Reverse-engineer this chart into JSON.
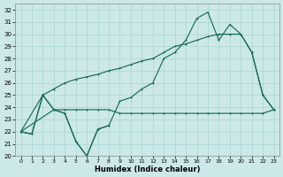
{
  "xlabel": "Humidex (Indice chaleur)",
  "xlim": [
    -0.5,
    23.5
  ],
  "ylim": [
    20,
    32.5
  ],
  "xticks": [
    0,
    1,
    2,
    3,
    4,
    5,
    6,
    7,
    8,
    9,
    10,
    11,
    12,
    13,
    14,
    15,
    16,
    17,
    18,
    19,
    20,
    21,
    22,
    23
  ],
  "yticks": [
    20,
    21,
    22,
    23,
    24,
    25,
    26,
    27,
    28,
    29,
    30,
    31,
    32
  ],
  "bg_color": "#cce8e8",
  "grid_color": "#aad4d4",
  "line_color": "#1a6b5a",
  "line_width": 0.85,
  "marker_size": 2.0,
  "series": [
    {
      "x": [
        0,
        1,
        2,
        3,
        4,
        5,
        6,
        7,
        8
      ],
      "y": [
        22.0,
        21.8,
        25.0,
        23.8,
        23.5,
        21.2,
        20.0,
        22.2,
        22.5
      ]
    },
    {
      "x": [
        0,
        3,
        4,
        5,
        6,
        7,
        8,
        9,
        10,
        11,
        12,
        13,
        14,
        15,
        16,
        17,
        18,
        19,
        20,
        21,
        22,
        23
      ],
      "y": [
        22.0,
        23.8,
        23.8,
        23.8,
        23.8,
        23.8,
        23.8,
        23.5,
        23.5,
        23.5,
        23.5,
        23.5,
        23.5,
        23.5,
        23.5,
        23.5,
        23.5,
        23.5,
        23.5,
        23.5,
        23.5,
        23.8
      ]
    },
    {
      "x": [
        0,
        2,
        3,
        4,
        5,
        6,
        7,
        8,
        9,
        10,
        11,
        12,
        13,
        14,
        15,
        16,
        17,
        18,
        19,
        20,
        21,
        22,
        23
      ],
      "y": [
        22.0,
        25.0,
        25.5,
        26.0,
        26.3,
        26.5,
        26.7,
        27.0,
        27.2,
        27.5,
        27.8,
        28.0,
        28.5,
        29.0,
        29.2,
        29.5,
        29.8,
        30.0,
        30.0,
        30.0,
        28.5,
        25.0,
        23.8
      ]
    },
    {
      "x": [
        0,
        1,
        2,
        3,
        4,
        5,
        6,
        7,
        8,
        9,
        10,
        11,
        12,
        13,
        14,
        15,
        16,
        17,
        18,
        19,
        20,
        21,
        22,
        23
      ],
      "y": [
        22.0,
        21.8,
        25.0,
        23.8,
        23.5,
        21.2,
        20.0,
        22.2,
        22.5,
        24.5,
        24.8,
        25.5,
        26.0,
        28.0,
        28.5,
        29.5,
        31.3,
        31.8,
        29.5,
        30.8,
        30.0,
        28.5,
        25.0,
        23.8
      ]
    }
  ]
}
